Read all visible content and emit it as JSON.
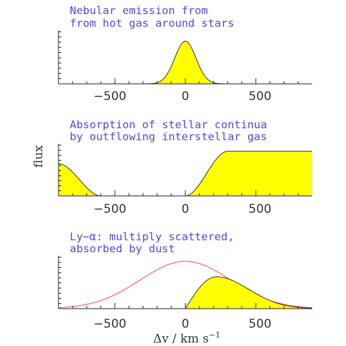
{
  "chart_data": [
    {
      "type": "area",
      "title_lines": [
        "Nebular emission from",
        "from hot gas around stars"
      ],
      "xlim": [
        -900,
        900
      ],
      "xticks": [
        -500,
        0,
        500
      ],
      "xtick_labels": [
        "−500",
        "0",
        "500"
      ],
      "grid": false,
      "fill_color": "#ffff00",
      "line_color": "#333333",
      "series": [
        {
          "kind": "gaussian_emission",
          "center": 0,
          "sigma": 75,
          "peak": 0.82
        }
      ]
    },
    {
      "type": "area",
      "title_lines": [
        "Absorption of stellar continua",
        "by outflowing interstellar gas"
      ],
      "xlim": [
        -900,
        900
      ],
      "xticks": [
        -500,
        0,
        500
      ],
      "xtick_labels": [
        "−500",
        "0",
        "500"
      ],
      "grid": false,
      "fill_color": "#ffff00",
      "line_color": "#333333",
      "series": [
        {
          "kind": "absorption_trough",
          "left_edge": -900,
          "left_bottom": -600,
          "right_bottom": 0,
          "right_top": 300,
          "continuum": 0.88
        }
      ]
    },
    {
      "type": "area",
      "title_lines": [
        "Ly−α: multiply scattered,",
        "absorbed by dust"
      ],
      "xlim": [
        -900,
        900
      ],
      "xticks": [
        -500,
        0,
        500
      ],
      "xtick_labels": [
        "−500",
        "0",
        "500"
      ],
      "grid": false,
      "fill_color": "#ffff00",
      "line_color": "#333333",
      "intrinsic_color": "#ff3333",
      "series": [
        {
          "kind": "intrinsic_gaussian",
          "center": 0,
          "sigma": 320,
          "peak": 0.92
        },
        {
          "kind": "skewed_emission",
          "cutoff": 0,
          "peak_at": 220,
          "peak": 0.62,
          "sigma_red": 230
        }
      ]
    }
  ],
  "axes": {
    "ylabel": "flux",
    "xlabel_symbol": "Δv",
    "xlabel_sep": " / ",
    "xlabel_unit": "km s",
    "xlabel_exp": "−1"
  }
}
